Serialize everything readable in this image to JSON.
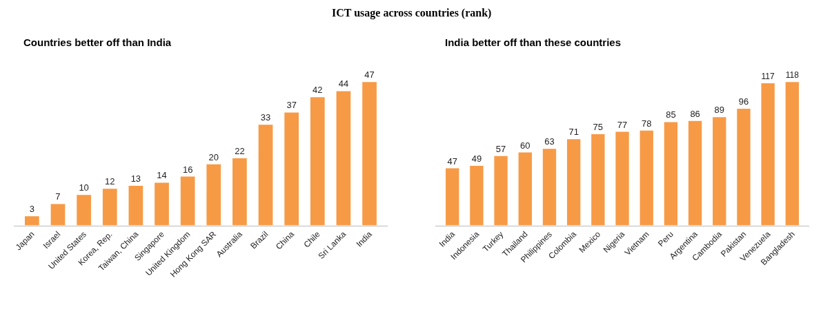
{
  "chart_data": [
    {
      "type": "bar",
      "title": "Countries better off than India",
      "categories": [
        "Japan",
        "Israel",
        "United States",
        "Korea, Rep.",
        "Taiwan, China",
        "Singapore",
        "United Kingdom",
        "Hong Kong SAR",
        "Australia",
        "Brazil",
        "China",
        "Chile",
        "Sri Lanka",
        "India"
      ],
      "values": [
        3,
        7,
        10,
        12,
        13,
        14,
        16,
        20,
        22,
        33,
        37,
        42,
        44,
        47
      ],
      "color": "#f79a46",
      "data_labels": true
    },
    {
      "type": "bar",
      "title": "India better off than these countries",
      "categories": [
        "India",
        "Indonesia",
        "Turkey",
        "Thailand",
        "Philippines",
        "Colombia",
        "Mexico",
        "Nigeria",
        "Vietnam",
        "Peru",
        "Argentina",
        "Cambodia",
        "Pakistan",
        "Venezuela",
        "Bangladesh"
      ],
      "values": [
        47,
        49,
        57,
        60,
        63,
        71,
        75,
        77,
        78,
        85,
        86,
        89,
        96,
        117,
        118
      ],
      "color": "#f79a46",
      "data_labels": true,
      "annotations": [
        "ICT usage across countries (rank)"
      ]
    }
  ]
}
